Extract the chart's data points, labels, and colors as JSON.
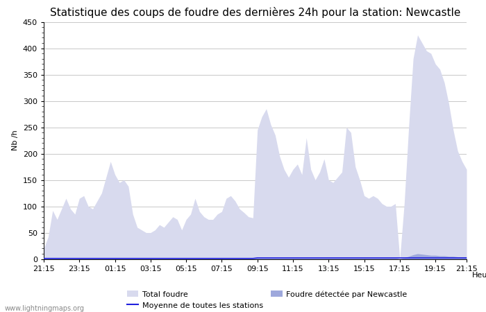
{
  "title": "Statistique des coups de foudre des dernières 24h pour la station: Newcastle",
  "xlabel": "Heure",
  "ylabel": "Nb /h",
  "xlim": [
    0,
    95
  ],
  "ylim": [
    0,
    450
  ],
  "yticks": [
    0,
    50,
    100,
    150,
    200,
    250,
    300,
    350,
    400,
    450
  ],
  "xtick_labels": [
    "21:15",
    "23:15",
    "01:15",
    "03:15",
    "05:15",
    "07:15",
    "09:15",
    "11:15",
    "13:15",
    "15:15",
    "17:15",
    "19:15",
    "21:15"
  ],
  "xtick_positions": [
    0,
    8,
    16,
    24,
    32,
    40,
    48,
    56,
    64,
    72,
    80,
    88,
    95
  ],
  "bg_color": "#ffffff",
  "grid_color": "#c8c8c8",
  "fill_total_color": "#d8daee",
  "fill_station_color": "#9ea8dc",
  "line_moyenne_color": "#2020dd",
  "watermark": "www.lightningmaps.org",
  "total_foudre": [
    20,
    42,
    92,
    75,
    95,
    115,
    95,
    85,
    115,
    120,
    100,
    95,
    110,
    125,
    155,
    185,
    160,
    145,
    150,
    138,
    85,
    60,
    55,
    50,
    50,
    55,
    65,
    60,
    70,
    80,
    75,
    55,
    75,
    85,
    115,
    90,
    80,
    75,
    75,
    85,
    90,
    115,
    120,
    110,
    95,
    88,
    80,
    78,
    245,
    270,
    285,
    255,
    235,
    195,
    170,
    155,
    170,
    180,
    160,
    230,
    170,
    150,
    165,
    190,
    150,
    145,
    155,
    165,
    250,
    240,
    175,
    150,
    120,
    115,
    120,
    115,
    105,
    100,
    100,
    105,
    0,
    105,
    250,
    380,
    425,
    410,
    395,
    390,
    370,
    360,
    335,
    295,
    245,
    205,
    185,
    170
  ],
  "station_foudre": [
    1,
    1,
    1,
    1,
    1,
    1,
    1,
    1,
    1,
    1,
    1,
    1,
    1,
    1,
    1,
    1,
    1,
    1,
    1,
    1,
    1,
    1,
    1,
    1,
    1,
    1,
    1,
    1,
    1,
    1,
    1,
    1,
    1,
    1,
    1,
    1,
    1,
    1,
    1,
    1,
    1,
    1,
    1,
    1,
    1,
    1,
    1,
    1,
    2,
    2,
    2,
    2,
    2,
    2,
    2,
    2,
    2,
    2,
    2,
    2,
    2,
    2,
    2,
    2,
    2,
    2,
    2,
    2,
    2,
    2,
    2,
    2,
    2,
    2,
    2,
    2,
    2,
    2,
    2,
    2,
    0,
    2,
    5,
    8,
    10,
    9,
    8,
    7,
    7,
    6,
    6,
    5,
    5,
    4,
    4,
    4
  ],
  "moyenne": [
    1,
    1,
    1,
    1,
    1,
    1,
    1,
    1,
    1,
    1,
    1,
    1,
    1,
    1,
    1,
    1,
    1,
    1,
    1,
    1,
    1,
    1,
    1,
    1,
    1,
    1,
    1,
    1,
    1,
    1,
    1,
    1,
    1,
    1,
    1,
    1,
    1,
    1,
    1,
    1,
    1,
    1,
    1,
    1,
    1,
    1,
    1,
    1,
    2,
    2,
    2,
    2,
    2,
    2,
    2,
    2,
    2,
    2,
    2,
    2,
    2,
    2,
    2,
    2,
    2,
    2,
    2,
    2,
    2,
    2,
    2,
    2,
    2,
    2,
    2,
    2,
    2,
    2,
    2,
    2,
    2,
    2,
    2,
    2,
    2,
    2,
    2,
    2,
    2,
    2,
    2,
    2,
    2,
    2,
    2,
    2
  ],
  "legend_total_label": "Total foudre",
  "legend_station_label": "Foudre détectée par Newcastle",
  "legend_moyenne_label": "Moyenne de toutes les stations",
  "title_fontsize": 11,
  "axis_fontsize": 8,
  "tick_fontsize": 8,
  "legend_fontsize": 8
}
